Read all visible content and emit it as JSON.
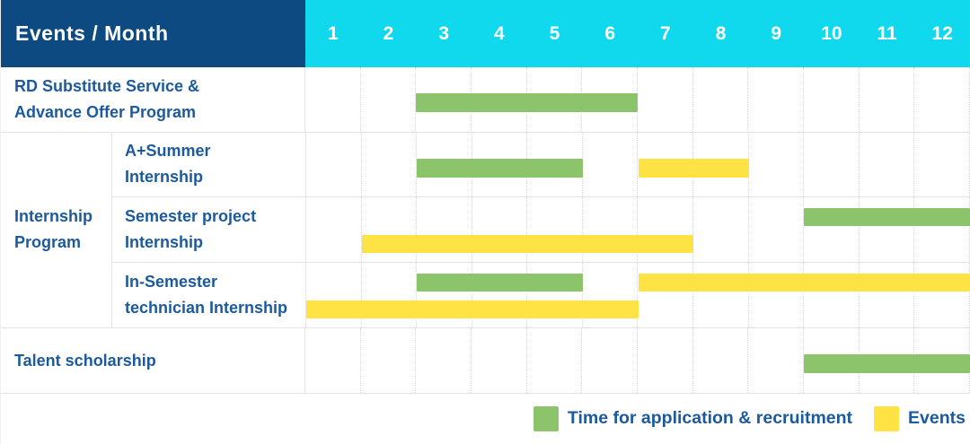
{
  "header": {
    "label": "Events / Month",
    "months": [
      "1",
      "2",
      "3",
      "4",
      "5",
      "6",
      "7",
      "8",
      "9",
      "10",
      "11",
      "12"
    ]
  },
  "chart_data": {
    "type": "bar",
    "subtype": "gantt-timeline",
    "title": "Events / Month",
    "x_axis_ticks": [
      "1",
      "2",
      "3",
      "4",
      "5",
      "6",
      "7",
      "8",
      "9",
      "10",
      "11",
      "12"
    ],
    "x_range_months": [
      1,
      12
    ],
    "legend_position": "bottom-right",
    "grid": "vertical-dotted-month-lines",
    "rows": [
      {
        "label": "RD Substitute Service &\nAdvance Offer Program",
        "group": "",
        "bar_lines": 1,
        "bars": [
          {
            "series": "Time for application & recruitment",
            "color_key": "green",
            "start_month": 3,
            "end_month": 6,
            "line": 0
          }
        ]
      },
      {
        "label": "A+Summer\nInternship",
        "group": "Internship Program",
        "bar_lines": 1,
        "bars": [
          {
            "series": "Time for application & recruitment",
            "color_key": "green",
            "start_month": 3,
            "end_month": 5,
            "line": 0
          },
          {
            "series": "Events",
            "color_key": "yellow",
            "start_month": 7,
            "end_month": 8,
            "line": 0
          }
        ]
      },
      {
        "label": "Semester project\nInternship",
        "group": "Internship Program",
        "bar_lines": 2,
        "bars": [
          {
            "series": "Time for application & recruitment",
            "color_key": "green",
            "start_month": 10,
            "end_month": 12,
            "line": 0
          },
          {
            "series": "Events",
            "color_key": "yellow",
            "start_month": 2,
            "end_month": 7,
            "line": 1
          }
        ]
      },
      {
        "label": "In-Semester\ntechnician Internship",
        "group": "Internship Program",
        "bar_lines": 2,
        "bars": [
          {
            "series": "Time for application & recruitment",
            "color_key": "green",
            "start_month": 3,
            "end_month": 5,
            "line": 0
          },
          {
            "series": "Events",
            "color_key": "yellow",
            "start_month": 7,
            "end_month": 12,
            "line": 0
          },
          {
            "series": "Events",
            "color_key": "yellow",
            "start_month": 1,
            "end_month": 6,
            "line": 1
          }
        ]
      },
      {
        "label": "Talent scholarship",
        "group": "",
        "bar_lines": 1,
        "bars": [
          {
            "series": "Time for application & recruitment",
            "color_key": "green",
            "start_month": 10,
            "end_month": 12,
            "line": 0
          }
        ]
      }
    ]
  },
  "legend": {
    "items": [
      {
        "color_key": "green",
        "label": "Time for application & recruitment"
      },
      {
        "color_key": "yellow",
        "label": "Events"
      }
    ]
  },
  "colors": {
    "header_bg": "#0d4a82",
    "months_bg": "#10d9ed",
    "green": "#8cc46b",
    "yellow": "#ffe345",
    "label_text": "#1c5a9d",
    "header_text": "#ffffff",
    "grid_line": "#e4e4e4",
    "grid_dotted": "#d9d9d9"
  }
}
